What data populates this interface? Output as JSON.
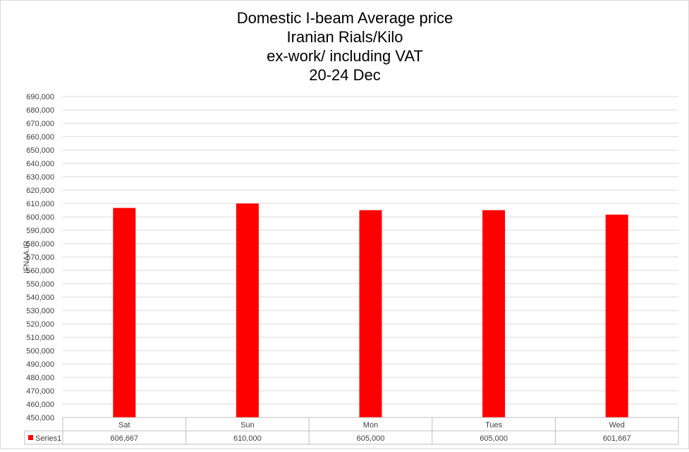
{
  "chart_data": {
    "type": "bar",
    "title_lines": [
      "Domestic I-beam Average price",
      "Iranian Rials/Kilo",
      "ex-work/ including VAT",
      "20-24 Dec"
    ],
    "ylabel": "IFNAA.IR",
    "xlabel": "",
    "ylim": [
      450000,
      690000
    ],
    "ytick_step": 10000,
    "ytick_labels": [
      "690,000",
      "680,000",
      "670,000",
      "660,000",
      "650,000",
      "640,000",
      "630,000",
      "620,000",
      "610,000",
      "600,000",
      "590,000",
      "580,000",
      "570,000",
      "560,000",
      "550,000",
      "540,000",
      "530,000",
      "520,000",
      "510,000",
      "500,000",
      "490,000",
      "480,000",
      "470,000",
      "460,000",
      "450,000"
    ],
    "categories": [
      "Sat",
      "Sun",
      "Mon",
      "Tues",
      "Wed"
    ],
    "series": [
      {
        "name": "Series1",
        "values": [
          606667,
          610000,
          605000,
          605000,
          601667
        ],
        "color": "#ff0000"
      }
    ],
    "value_labels": [
      "606,667",
      "610,000",
      "605,000",
      "605,000",
      "601,667"
    ],
    "grid": true,
    "data_table": true
  }
}
